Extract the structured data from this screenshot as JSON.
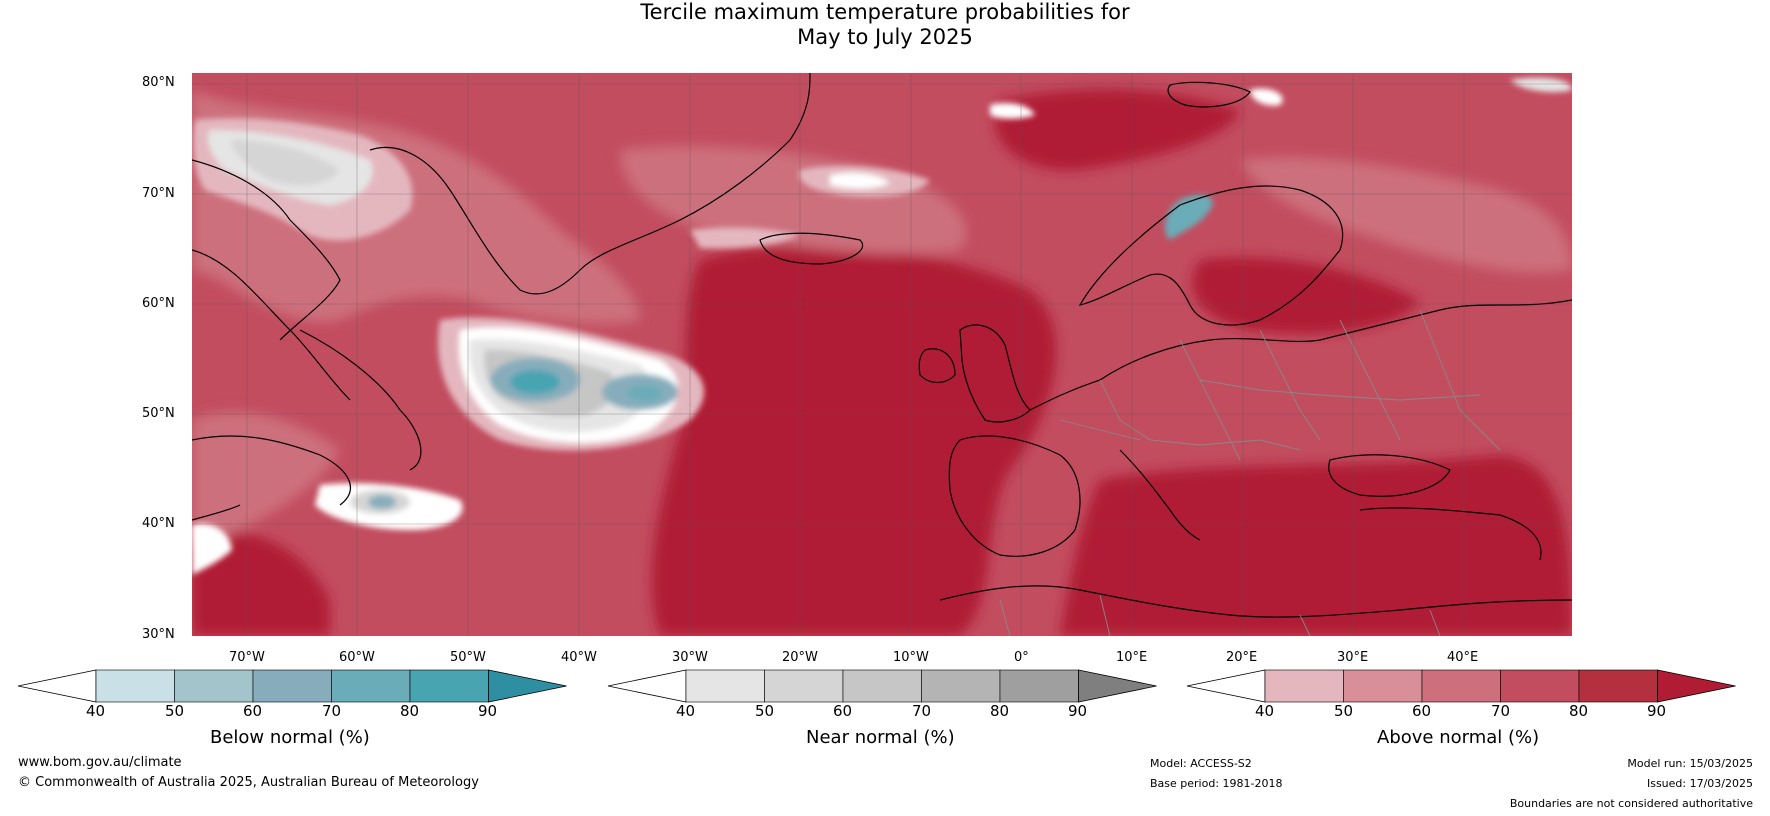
{
  "title": {
    "line1": "Tercile maximum temperature probabilities for",
    "line2": "May to July 2025"
  },
  "map": {
    "lat_ticks": [
      "80°N",
      "70°N",
      "60°N",
      "50°N",
      "40°N",
      "30°N"
    ],
    "lon_ticks": [
      "70°W",
      "60°W",
      "50°W",
      "40°W",
      "30°W",
      "20°W",
      "10°W",
      "0°",
      "10°E",
      "20°E",
      "30°E",
      "40°E"
    ]
  },
  "colorbars": [
    {
      "name": "below",
      "title": "Below normal (%)",
      "ticks": [
        "40",
        "50",
        "60",
        "70",
        "80",
        "90"
      ],
      "colors": [
        "#ffffff",
        "#c8e0e6",
        "#a4c4cc",
        "#87adbc",
        "#6aacb8",
        "#49a4b2",
        "#2e8ea2"
      ]
    },
    {
      "name": "near",
      "title": "Near normal (%)",
      "ticks": [
        "40",
        "50",
        "60",
        "70",
        "80",
        "90"
      ],
      "colors": [
        "#ffffff",
        "#e5e5e5",
        "#d5d5d5",
        "#c6c6c6",
        "#b4b4b4",
        "#9f9f9f",
        "#7f7f7f"
      ]
    },
    {
      "name": "above",
      "title": "Above normal (%)",
      "ticks": [
        "40",
        "50",
        "60",
        "70",
        "80",
        "90"
      ],
      "colors": [
        "#ffffff",
        "#e4b7bf",
        "#d88f9a",
        "#cd6f7d",
        "#c24d5f",
        "#b5303f",
        "#b01c34"
      ]
    }
  ],
  "footer": {
    "url": "www.bom.gov.au/climate",
    "copyright": "© Commonwealth of Australia 2025, Australian Bureau of Meteorology",
    "model": "Model: ACCESS-S2",
    "base_period": "Base period: 1981-2018",
    "model_run": "Model run: 15/03/2025",
    "issued": "Issued: 17/03/2025",
    "disclaimer": "Boundaries are not considered authoritative"
  }
}
